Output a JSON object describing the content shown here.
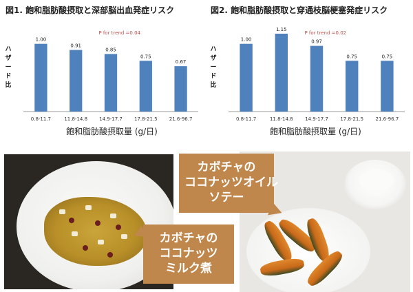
{
  "figures": {
    "fig1_title": "図1. 飽和脂肪酸摂取と深部脳出血発症リスク",
    "fig2_title": "図2. 飽和脂肪酸摂取と穿通枝脳梗塞発症リスク",
    "x1_title": "飽和脂肪酸摂取量 (g/日)",
    "x2_title": "飽和脂肪酸摂取量 (g/日)"
  },
  "chart_data": [
    {
      "type": "bar",
      "title": "図1. 飽和脂肪酸摂取と深部脳出血発症リスク",
      "categories": [
        "0.8-11.7",
        "11.8-14.8",
        "14.9-17.7",
        "17.8-21.5",
        "21.6-96.7"
      ],
      "values": [
        1.0,
        0.91,
        0.85,
        0.75,
        0.67
      ],
      "value_labels": [
        "1.00",
        "0.91",
        "0.85",
        "0.75",
        "0.67"
      ],
      "ylabel": "ハザード比",
      "xlabel": "飽和脂肪酸摂取量 (g/日)",
      "annotation": "P for trend =0.04",
      "ylim": [
        0,
        1.2
      ],
      "bar_color": "#4f81bd",
      "grid": false
    },
    {
      "type": "bar",
      "title": "図2. 飽和脂肪酸摂取と穿通枝脳梗塞発症リスク",
      "categories": [
        "0.8-11.7",
        "11.8-14.8",
        "14.9-17.7",
        "17.8-21.5",
        "21.6-96.7"
      ],
      "values": [
        1.0,
        1.15,
        0.97,
        0.75,
        0.75
      ],
      "value_labels": [
        "1.00",
        "1.15",
        "0.97",
        "0.75",
        "0.75"
      ],
      "ylabel": "ハザード比",
      "xlabel": "飽和脂肪酸摂取量 (g/日)",
      "annotation": "P for trend =0.02",
      "ylim": [
        0,
        1.2
      ],
      "bar_color": "#4f81bd",
      "grid": false
    }
  ],
  "callouts": {
    "top": [
      "カボチャの",
      "ココナッツオイル",
      "ソテー"
    ],
    "bottom": [
      "カボチャの",
      "ココナッツ",
      "ミルク煮"
    ]
  },
  "colors": {
    "bar": "#4f81bd",
    "trend_text": "#c0504d",
    "callout_bg": "#c0874c"
  }
}
